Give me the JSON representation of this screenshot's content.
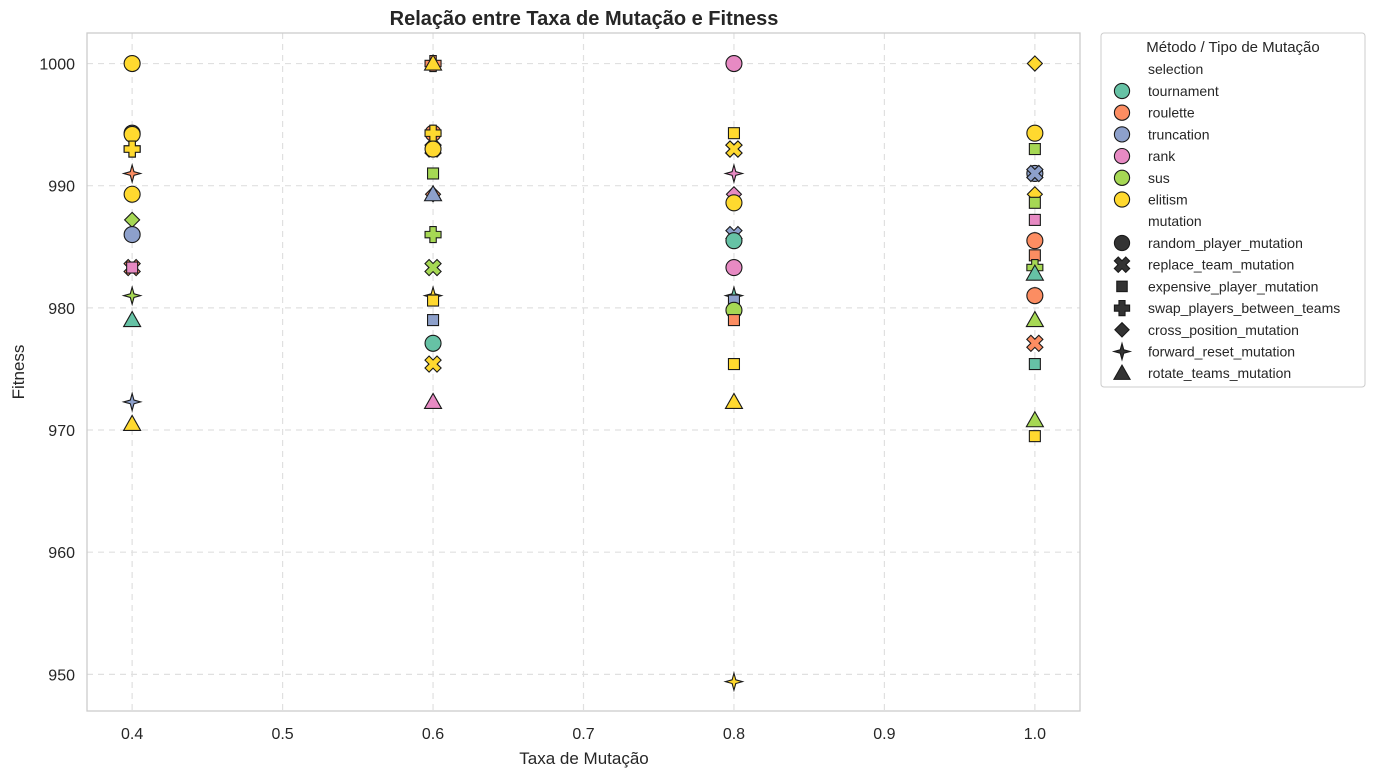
{
  "chart_data": {
    "type": "scatter",
    "title": "Relação entre Taxa de Mutação e Fitness",
    "xlabel": "Taxa de Mutação",
    "ylabel": "Fitness",
    "xlim": [
      0.37,
      1.03
    ],
    "ylim": [
      947,
      1002.5
    ],
    "xticks": [
      0.4,
      0.5,
      0.6,
      0.7,
      0.8,
      0.9,
      1.0
    ],
    "xtick_labels": [
      "0.4",
      "0.5",
      "0.6",
      "0.7",
      "0.8",
      "0.9",
      "1.0"
    ],
    "yticks": [
      950,
      960,
      970,
      980,
      990,
      1000
    ],
    "ytick_labels": [
      "950",
      "960",
      "970",
      "980",
      "990",
      "1000"
    ],
    "grid": true,
    "legend_position": "outside-top-right",
    "legend": {
      "title": "Método / Tipo de Mutação",
      "hue_header": "selection",
      "style_header": "mutation",
      "selection": [
        {
          "name": "tournament",
          "color": "#66c2a5"
        },
        {
          "name": "roulette",
          "color": "#fc8d62"
        },
        {
          "name": "truncation",
          "color": "#8da0cb"
        },
        {
          "name": "rank",
          "color": "#e78ac3"
        },
        {
          "name": "sus",
          "color": "#a6d854"
        },
        {
          "name": "elitism",
          "color": "#ffd92f"
        }
      ],
      "mutation": [
        {
          "name": "random_player_mutation",
          "marker": "circle"
        },
        {
          "name": "replace_team_mutation",
          "marker": "x"
        },
        {
          "name": "expensive_player_mutation",
          "marker": "square"
        },
        {
          "name": "swap_players_between_teams",
          "marker": "plus"
        },
        {
          "name": "cross_position_mutation",
          "marker": "diamond"
        },
        {
          "name": "forward_reset_mutation",
          "marker": "star"
        },
        {
          "name": "rotate_teams_mutation",
          "marker": "triangle"
        }
      ]
    },
    "points": [
      {
        "x": 0.4,
        "y": 1000,
        "selection": "tournament",
        "mutation": "expensive_player_mutation"
      },
      {
        "x": 0.4,
        "y": 1000,
        "selection": "roulette",
        "mutation": "expensive_player_mutation"
      },
      {
        "x": 0.4,
        "y": 1000,
        "selection": "elitism",
        "mutation": "random_player_mutation"
      },
      {
        "x": 0.4,
        "y": 994.3,
        "selection": "truncation",
        "mutation": "random_player_mutation"
      },
      {
        "x": 0.4,
        "y": 994.2,
        "selection": "elitism",
        "mutation": "random_player_mutation"
      },
      {
        "x": 0.4,
        "y": 993,
        "selection": "truncation",
        "mutation": "swap_players_between_teams"
      },
      {
        "x": 0.4,
        "y": 993,
        "selection": "elitism",
        "mutation": "swap_players_between_teams"
      },
      {
        "x": 0.4,
        "y": 991,
        "selection": "roulette",
        "mutation": "forward_reset_mutation"
      },
      {
        "x": 0.4,
        "y": 989.3,
        "selection": "elitism",
        "mutation": "random_player_mutation"
      },
      {
        "x": 0.4,
        "y": 987.2,
        "selection": "sus",
        "mutation": "cross_position_mutation"
      },
      {
        "x": 0.4,
        "y": 986,
        "selection": "truncation",
        "mutation": "random_player_mutation"
      },
      {
        "x": 0.4,
        "y": 983.3,
        "selection": "roulette",
        "mutation": "replace_team_mutation"
      },
      {
        "x": 0.4,
        "y": 983.3,
        "selection": "rank",
        "mutation": "expensive_player_mutation"
      },
      {
        "x": 0.4,
        "y": 981,
        "selection": "sus",
        "mutation": "forward_reset_mutation"
      },
      {
        "x": 0.4,
        "y": 979,
        "selection": "tournament",
        "mutation": "rotate_teams_mutation"
      },
      {
        "x": 0.4,
        "y": 972.3,
        "selection": "truncation",
        "mutation": "forward_reset_mutation"
      },
      {
        "x": 0.4,
        "y": 970.5,
        "selection": "elitism",
        "mutation": "rotate_teams_mutation"
      },
      {
        "x": 0.6,
        "y": 1000,
        "selection": "roulette",
        "mutation": "swap_players_between_teams"
      },
      {
        "x": 0.6,
        "y": 1000,
        "selection": "elitism",
        "mutation": "rotate_teams_mutation"
      },
      {
        "x": 0.6,
        "y": 994.3,
        "selection": "roulette",
        "mutation": "random_player_mutation"
      },
      {
        "x": 0.6,
        "y": 994.3,
        "selection": "elitism",
        "mutation": "swap_players_between_teams"
      },
      {
        "x": 0.6,
        "y": 993,
        "selection": "roulette",
        "mutation": "replace_team_mutation"
      },
      {
        "x": 0.6,
        "y": 993,
        "selection": "elitism",
        "mutation": "random_player_mutation"
      },
      {
        "x": 0.6,
        "y": 991,
        "selection": "sus",
        "mutation": "expensive_player_mutation"
      },
      {
        "x": 0.6,
        "y": 989.3,
        "selection": "roulette",
        "mutation": "cross_position_mutation"
      },
      {
        "x": 0.6,
        "y": 989.3,
        "selection": "truncation",
        "mutation": "rotate_teams_mutation"
      },
      {
        "x": 0.6,
        "y": 986,
        "selection": "sus",
        "mutation": "swap_players_between_teams"
      },
      {
        "x": 0.6,
        "y": 983.3,
        "selection": "sus",
        "mutation": "replace_team_mutation"
      },
      {
        "x": 0.6,
        "y": 981,
        "selection": "elitism",
        "mutation": "forward_reset_mutation"
      },
      {
        "x": 0.6,
        "y": 980.6,
        "selection": "elitism",
        "mutation": "expensive_player_mutation"
      },
      {
        "x": 0.6,
        "y": 979,
        "selection": "truncation",
        "mutation": "expensive_player_mutation"
      },
      {
        "x": 0.6,
        "y": 977.1,
        "selection": "tournament",
        "mutation": "random_player_mutation"
      },
      {
        "x": 0.6,
        "y": 975.4,
        "selection": "elitism",
        "mutation": "replace_team_mutation"
      },
      {
        "x": 0.6,
        "y": 972.3,
        "selection": "rank",
        "mutation": "rotate_teams_mutation"
      },
      {
        "x": 0.8,
        "y": 1000,
        "selection": "rank",
        "mutation": "random_player_mutation"
      },
      {
        "x": 0.8,
        "y": 994.3,
        "selection": "elitism",
        "mutation": "expensive_player_mutation"
      },
      {
        "x": 0.8,
        "y": 993,
        "selection": "roulette",
        "mutation": "replace_team_mutation"
      },
      {
        "x": 0.8,
        "y": 993,
        "selection": "elitism",
        "mutation": "replace_team_mutation"
      },
      {
        "x": 0.8,
        "y": 991,
        "selection": "rank",
        "mutation": "forward_reset_mutation"
      },
      {
        "x": 0.8,
        "y": 989.3,
        "selection": "rank",
        "mutation": "cross_position_mutation"
      },
      {
        "x": 0.8,
        "y": 988.6,
        "selection": "elitism",
        "mutation": "random_player_mutation"
      },
      {
        "x": 0.8,
        "y": 986,
        "selection": "truncation",
        "mutation": "replace_team_mutation"
      },
      {
        "x": 0.8,
        "y": 985.5,
        "selection": "roulette",
        "mutation": "expensive_player_mutation"
      },
      {
        "x": 0.8,
        "y": 985.5,
        "selection": "tournament",
        "mutation": "random_player_mutation"
      },
      {
        "x": 0.8,
        "y": 983.3,
        "selection": "rank",
        "mutation": "random_player_mutation"
      },
      {
        "x": 0.8,
        "y": 981,
        "selection": "tournament",
        "mutation": "forward_reset_mutation"
      },
      {
        "x": 0.8,
        "y": 980.6,
        "selection": "truncation",
        "mutation": "expensive_player_mutation"
      },
      {
        "x": 0.8,
        "y": 979.8,
        "selection": "sus",
        "mutation": "random_player_mutation"
      },
      {
        "x": 0.8,
        "y": 979,
        "selection": "roulette",
        "mutation": "expensive_player_mutation"
      },
      {
        "x": 0.8,
        "y": 975.4,
        "selection": "elitism",
        "mutation": "expensive_player_mutation"
      },
      {
        "x": 0.8,
        "y": 972.3,
        "selection": "elitism",
        "mutation": "rotate_teams_mutation"
      },
      {
        "x": 0.8,
        "y": 949.4,
        "selection": "elitism",
        "mutation": "forward_reset_mutation"
      },
      {
        "x": 1.0,
        "y": 1000,
        "selection": "elitism",
        "mutation": "cross_position_mutation"
      },
      {
        "x": 1.0,
        "y": 994.3,
        "selection": "elitism",
        "mutation": "random_player_mutation"
      },
      {
        "x": 1.0,
        "y": 993,
        "selection": "sus",
        "mutation": "expensive_player_mutation"
      },
      {
        "x": 1.0,
        "y": 991,
        "selection": "truncation",
        "mutation": "random_player_mutation"
      },
      {
        "x": 1.0,
        "y": 991,
        "selection": "truncation",
        "mutation": "replace_team_mutation"
      },
      {
        "x": 1.0,
        "y": 989.3,
        "selection": "elitism",
        "mutation": "cross_position_mutation"
      },
      {
        "x": 1.0,
        "y": 988.6,
        "selection": "sus",
        "mutation": "expensive_player_mutation"
      },
      {
        "x": 1.0,
        "y": 987.2,
        "selection": "rank",
        "mutation": "expensive_player_mutation"
      },
      {
        "x": 1.0,
        "y": 985.5,
        "selection": "roulette",
        "mutation": "random_player_mutation"
      },
      {
        "x": 1.0,
        "y": 984.3,
        "selection": "roulette",
        "mutation": "expensive_player_mutation"
      },
      {
        "x": 1.0,
        "y": 983.3,
        "selection": "sus",
        "mutation": "swap_players_between_teams"
      },
      {
        "x": 1.0,
        "y": 982.8,
        "selection": "tournament",
        "mutation": "rotate_teams_mutation"
      },
      {
        "x": 1.0,
        "y": 981,
        "selection": "roulette",
        "mutation": "random_player_mutation"
      },
      {
        "x": 1.0,
        "y": 979,
        "selection": "sus",
        "mutation": "rotate_teams_mutation"
      },
      {
        "x": 1.0,
        "y": 977.1,
        "selection": "roulette",
        "mutation": "replace_team_mutation"
      },
      {
        "x": 1.0,
        "y": 975.4,
        "selection": "tournament",
        "mutation": "expensive_player_mutation"
      },
      {
        "x": 1.0,
        "y": 970.8,
        "selection": "sus",
        "mutation": "rotate_teams_mutation"
      },
      {
        "x": 1.0,
        "y": 969.5,
        "selection": "elitism",
        "mutation": "expensive_player_mutation"
      }
    ]
  }
}
